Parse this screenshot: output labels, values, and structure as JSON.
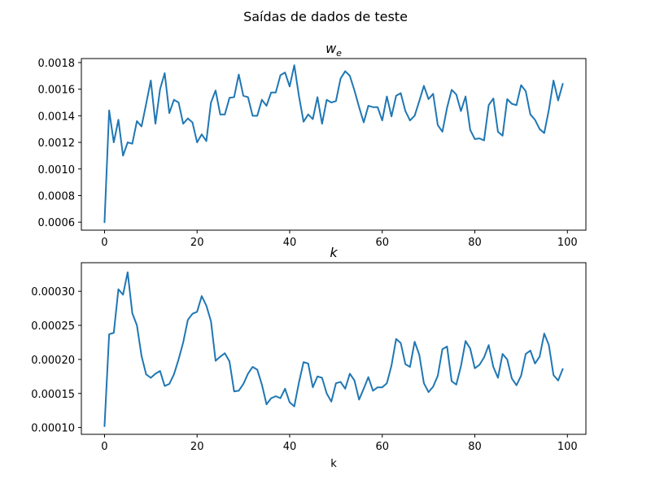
{
  "figure": {
    "suptitle": "Saídas de dados de teste"
  },
  "chart_data": [
    {
      "type": "line",
      "title": "w_e",
      "title_main": "w",
      "title_sub": "e",
      "xlabel": "",
      "ylabel": "",
      "xlim": [
        -5,
        104
      ],
      "ylim": [
        0.00054,
        0.00183
      ],
      "xticks": [
        0,
        20,
        40,
        60,
        80,
        100
      ],
      "xtick_labels": [
        "0",
        "20",
        "40",
        "60",
        "80",
        "100"
      ],
      "yticks": [
        0.0006,
        0.0008,
        0.001,
        0.0012,
        0.0014,
        0.0016,
        0.0018
      ],
      "ytick_labels": [
        "0.0006",
        "0.0008",
        "0.0010",
        "0.0012",
        "0.0014",
        "0.0016",
        "0.0018"
      ],
      "grid": false,
      "color": "#1f77b4",
      "x": [
        0,
        1,
        2,
        3,
        4,
        5,
        6,
        7,
        8,
        9,
        10,
        11,
        12,
        13,
        14,
        15,
        16,
        17,
        18,
        19,
        20,
        21,
        22,
        23,
        24,
        25,
        26,
        27,
        28,
        29,
        30,
        31,
        32,
        33,
        34,
        35,
        36,
        37,
        38,
        39,
        40,
        41,
        42,
        43,
        44,
        45,
        46,
        47,
        48,
        49,
        50,
        51,
        52,
        53,
        54,
        55,
        56,
        57,
        58,
        59,
        60,
        61,
        62,
        63,
        64,
        65,
        66,
        67,
        68,
        69,
        70,
        71,
        72,
        73,
        74,
        75,
        76,
        77,
        78,
        79,
        80,
        81,
        82,
        83,
        84,
        85,
        86,
        87,
        88,
        89,
        90,
        91,
        92,
        93,
        94,
        95,
        96,
        97,
        98,
        99
      ],
      "values": [
        0.0006,
        0.00144,
        0.0012,
        0.00137,
        0.0011,
        0.0012,
        0.00119,
        0.00136,
        0.00132,
        0.00149,
        0.001665,
        0.00134,
        0.0016,
        0.00172,
        0.00142,
        0.00152,
        0.0015,
        0.00134,
        0.00138,
        0.00135,
        0.0012,
        0.00126,
        0.00121,
        0.0015,
        0.00159,
        0.00141,
        0.00141,
        0.001535,
        0.00154,
        0.00171,
        0.00155,
        0.00154,
        0.0014,
        0.0014,
        0.00152,
        0.001475,
        0.001575,
        0.001575,
        0.001705,
        0.001725,
        0.00162,
        0.00178,
        0.00155,
        0.001355,
        0.00141,
        0.001375,
        0.00154,
        0.00134,
        0.00152,
        0.0015,
        0.00151,
        0.00168,
        0.001735,
        0.0017,
        0.00159,
        0.001465,
        0.00135,
        0.001475,
        0.001465,
        0.001465,
        0.001365,
        0.001545,
        0.001395,
        0.00155,
        0.00157,
        0.001435,
        0.001365,
        0.0014,
        0.00151,
        0.001625,
        0.001525,
        0.001565,
        0.00133,
        0.00128,
        0.00146,
        0.001595,
        0.00156,
        0.001435,
        0.001545,
        0.001295,
        0.001225,
        0.00123,
        0.001215,
        0.00148,
        0.00153,
        0.00128,
        0.00125,
        0.001525,
        0.00149,
        0.00148,
        0.00163,
        0.001585,
        0.00141,
        0.00137,
        0.0013,
        0.00127,
        0.001445,
        0.001665,
        0.001515,
        0.00164
      ]
    },
    {
      "type": "line",
      "title": "k",
      "xlabel": "k",
      "ylabel": "",
      "xlim": [
        -5,
        104
      ],
      "ylim": [
        9e-05,
        0.000342
      ],
      "xticks": [
        0,
        20,
        40,
        60,
        80,
        100
      ],
      "xtick_labels": [
        "0",
        "20",
        "40",
        "60",
        "80",
        "100"
      ],
      "yticks": [
        0.0001,
        0.00015,
        0.0002,
        0.00025,
        0.0003
      ],
      "ytick_labels": [
        "0.00010",
        "0.00015",
        "0.00020",
        "0.00025",
        "0.00030"
      ],
      "grid": false,
      "color": "#1f77b4",
      "x": [
        0,
        1,
        2,
        3,
        4,
        5,
        6,
        7,
        8,
        9,
        10,
        11,
        12,
        13,
        14,
        15,
        16,
        17,
        18,
        19,
        20,
        21,
        22,
        23,
        24,
        25,
        26,
        27,
        28,
        29,
        30,
        31,
        32,
        33,
        34,
        35,
        36,
        37,
        38,
        39,
        40,
        41,
        42,
        43,
        44,
        45,
        46,
        47,
        48,
        49,
        50,
        51,
        52,
        53,
        54,
        55,
        56,
        57,
        58,
        59,
        60,
        61,
        62,
        63,
        64,
        65,
        66,
        67,
        68,
        69,
        70,
        71,
        72,
        73,
        74,
        75,
        76,
        77,
        78,
        79,
        80,
        81,
        82,
        83,
        84,
        85,
        86,
        87,
        88,
        89,
        90,
        91,
        92,
        93,
        94,
        95,
        96,
        97,
        98,
        99
      ],
      "values": [
        0.000102,
        0.000237,
        0.000239,
        0.000303,
        0.000295,
        0.000328,
        0.000268,
        0.00025,
        0.000205,
        0.000178,
        0.000173,
        0.000179,
        0.000183,
        0.000161,
        0.000164,
        0.000178,
        0.0002,
        0.000225,
        0.000258,
        0.000267,
        0.00027,
        0.000293,
        0.000279,
        0.000256,
        0.000198,
        0.000204,
        0.000209,
        0.000197,
        0.000153,
        0.000154,
        0.000164,
        0.000179,
        0.000189,
        0.000185,
        0.000163,
        0.000134,
        0.000143,
        0.000146,
        0.000143,
        0.000157,
        0.000137,
        0.000131,
        0.000166,
        0.000196,
        0.000194,
        0.000159,
        0.000175,
        0.000173,
        0.00015,
        0.000138,
        0.000165,
        0.000167,
        0.000157,
        0.000179,
        0.000169,
        0.000141,
        0.000157,
        0.000174,
        0.000154,
        0.000159,
        0.000159,
        0.000165,
        0.000191,
        0.00023,
        0.000224,
        0.000193,
        0.000189,
        0.000226,
        0.000207,
        0.000165,
        0.000152,
        0.00016,
        0.000176,
        0.000215,
        0.000219,
        0.000168,
        0.000163,
        0.00019,
        0.000227,
        0.000216,
        0.000187,
        0.000192,
        0.000203,
        0.000221,
        0.000189,
        0.000173,
        0.000208,
        0.0002,
        0.000172,
        0.000162,
        0.000176,
        0.000208,
        0.000213,
        0.000194,
        0.000204,
        0.000238,
        0.000221,
        0.000177,
        0.000169,
        0.000186
      ]
    }
  ]
}
